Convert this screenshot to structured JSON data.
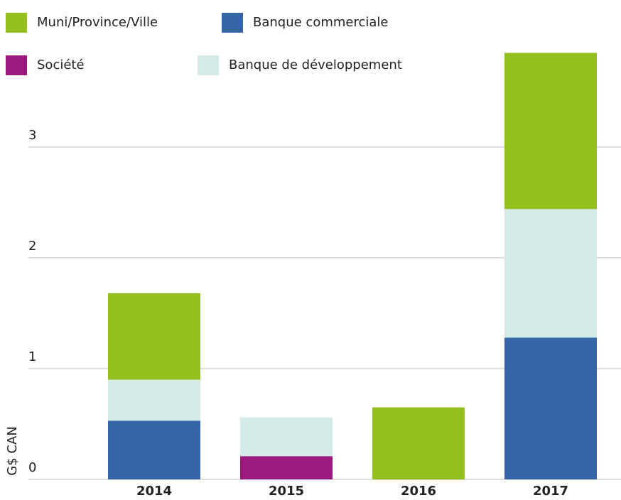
{
  "chart_data": {
    "type": "bar",
    "stacked": true,
    "y_label": "G$ CAN",
    "categories": [
      "2014",
      "2015",
      "2016",
      "2017"
    ],
    "series": [
      {
        "name": "Banque commerciale",
        "color": "#3567a7",
        "values": [
          0.53,
          0,
          0,
          1.28
        ]
      },
      {
        "name": "Société",
        "color": "#9a1a80",
        "values": [
          0,
          0.21,
          0,
          0
        ]
      },
      {
        "name": "Banque de développement",
        "color": "#d4ebe8",
        "values": [
          0.37,
          0.35,
          0,
          1.16
        ]
      },
      {
        "name": "Muni/Province/Ville",
        "color": "#93c01f",
        "values": [
          0.78,
          0,
          0.65,
          1.41
        ]
      }
    ],
    "ylim": [
      0,
      4
    ],
    "yticks": [
      0,
      1,
      2,
      3
    ],
    "grid": true
  }
}
